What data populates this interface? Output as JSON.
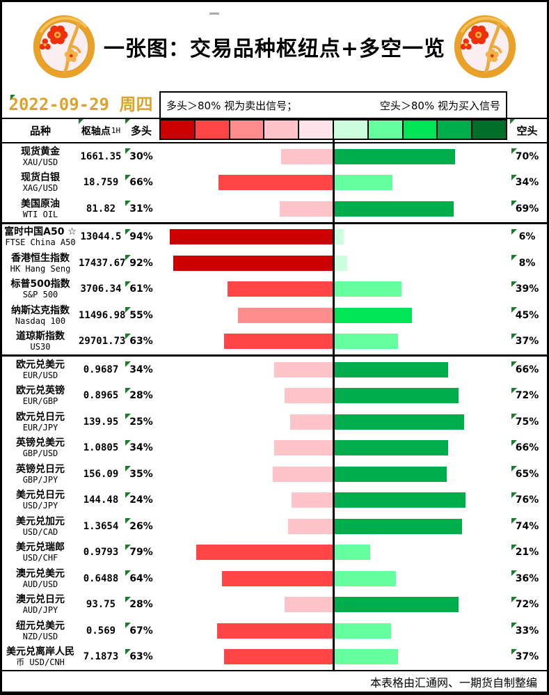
{
  "header": {
    "title": "一张图：交易品种枢纽点+多空一览"
  },
  "subheader": {
    "date": "2022-09-29 周四",
    "legend_long_rule": "多头＞80% 视为卖出信号；",
    "legend_short_rule": "空头＞80% 视为买入信号"
  },
  "table": {
    "columns": {
      "instrument": "品种",
      "pivot": "枢轴点",
      "pivot_suffix": "1H",
      "long": "多头",
      "short": "空头"
    },
    "scale_colors": [
      "#CC0000",
      "#FF4545",
      "#FF8D8D",
      "#FFC4CA",
      "#FFE5E9",
      "#CCFFDD",
      "#66FF9F",
      "#00E556",
      "#00AD4B",
      "#006F2A"
    ],
    "long_color_buckets": [
      [
        80,
        "#CC0000"
      ],
      [
        60,
        "#FF4545"
      ],
      [
        40,
        "#FF8D8D"
      ],
      [
        20,
        "#FFC4CA"
      ],
      [
        0,
        "#FFE5E9"
      ]
    ],
    "short_color_buckets": [
      [
        80,
        "#006F2A"
      ],
      [
        60,
        "#00AD4B"
      ],
      [
        40,
        "#00E556"
      ],
      [
        20,
        "#66FF9F"
      ],
      [
        0,
        "#CCFFDD"
      ]
    ],
    "marker_color": "#1B7C2C",
    "accent_gold": "#DFA32B"
  },
  "chart_data": {
    "type": "bar",
    "orientation": "diverging-horizontal",
    "center_axis": 0,
    "max_pct": 100,
    "legend_position": "top",
    "groups": [
      {
        "name": "commodities",
        "rows": [
          {
            "name": "现货黄金",
            "ticker": "XAU/USD",
            "pivot": "1661.35",
            "long_pct": 30,
            "short_pct": 70
          },
          {
            "name": "现货白银",
            "ticker": "XAG/USD",
            "pivot": "18.759",
            "long_pct": 66,
            "short_pct": 34
          },
          {
            "name": "美国原油",
            "ticker": "WTI OIL",
            "pivot": "81.82",
            "long_pct": 31,
            "short_pct": 69
          }
        ]
      },
      {
        "name": "indices",
        "rows": [
          {
            "name": "富时中国A50 ☆",
            "ticker": "FTSE China A50",
            "pivot": "13044.5",
            "long_pct": 94,
            "short_pct": 6
          },
          {
            "name": "香港恒生指数",
            "ticker": "HK Hang Seng",
            "pivot": "17437.67",
            "long_pct": 92,
            "short_pct": 8
          },
          {
            "name": "标普500指数",
            "ticker": "S&P 500",
            "pivot": "3706.34",
            "long_pct": 61,
            "short_pct": 39
          },
          {
            "name": "纳斯达克指数",
            "ticker": "Nasdaq 100",
            "pivot": "11496.98",
            "long_pct": 55,
            "short_pct": 45
          },
          {
            "name": "道琼斯指数",
            "ticker": "US30",
            "pivot": "29701.73",
            "long_pct": 63,
            "short_pct": 37
          }
        ]
      },
      {
        "name": "forex",
        "rows": [
          {
            "name": "欧元兑美元",
            "ticker": "EUR/USD",
            "pivot": "0.9687",
            "long_pct": 34,
            "short_pct": 66
          },
          {
            "name": "欧元兑英镑",
            "ticker": "EUR/GBP",
            "pivot": "0.8965",
            "long_pct": 28,
            "short_pct": 72
          },
          {
            "name": "欧元兑日元",
            "ticker": "EUR/JPY",
            "pivot": "139.95",
            "long_pct": 25,
            "short_pct": 75
          },
          {
            "name": "英镑兑美元",
            "ticker": "GBP/USD",
            "pivot": "1.0805",
            "long_pct": 34,
            "short_pct": 66
          },
          {
            "name": "英镑兑日元",
            "ticker": "GBP/JPY",
            "pivot": "156.09",
            "long_pct": 35,
            "short_pct": 65
          },
          {
            "name": "美元兑日元",
            "ticker": "USD/JPY",
            "pivot": "144.48",
            "long_pct": 24,
            "short_pct": 76
          },
          {
            "name": "美元兑加元",
            "ticker": "USD/CAD",
            "pivot": "1.3654",
            "long_pct": 26,
            "short_pct": 74
          },
          {
            "name": "美元兑瑞郎",
            "ticker": "USD/CHF",
            "pivot": "0.9793",
            "long_pct": 79,
            "short_pct": 21
          },
          {
            "name": "澳元兑美元",
            "ticker": "AUD/USD",
            "pivot": "0.6488",
            "long_pct": 64,
            "short_pct": 36
          },
          {
            "name": "澳元兑日元",
            "ticker": "AUD/JPY",
            "pivot": "93.75",
            "long_pct": 28,
            "short_pct": 72
          },
          {
            "name": "纽元兑美元",
            "ticker": "NZD/USD",
            "pivot": "0.569",
            "long_pct": 67,
            "short_pct": 33
          },
          {
            "name": "美元兑离岸人民币",
            "ticker": "USD/CNH",
            "pivot": "7.1873",
            "long_pct": 63,
            "short_pct": 37,
            "wrap_at": 7
          }
        ]
      }
    ]
  },
  "footer": {
    "credit": "本表格由汇通网、一期货自制整编"
  }
}
